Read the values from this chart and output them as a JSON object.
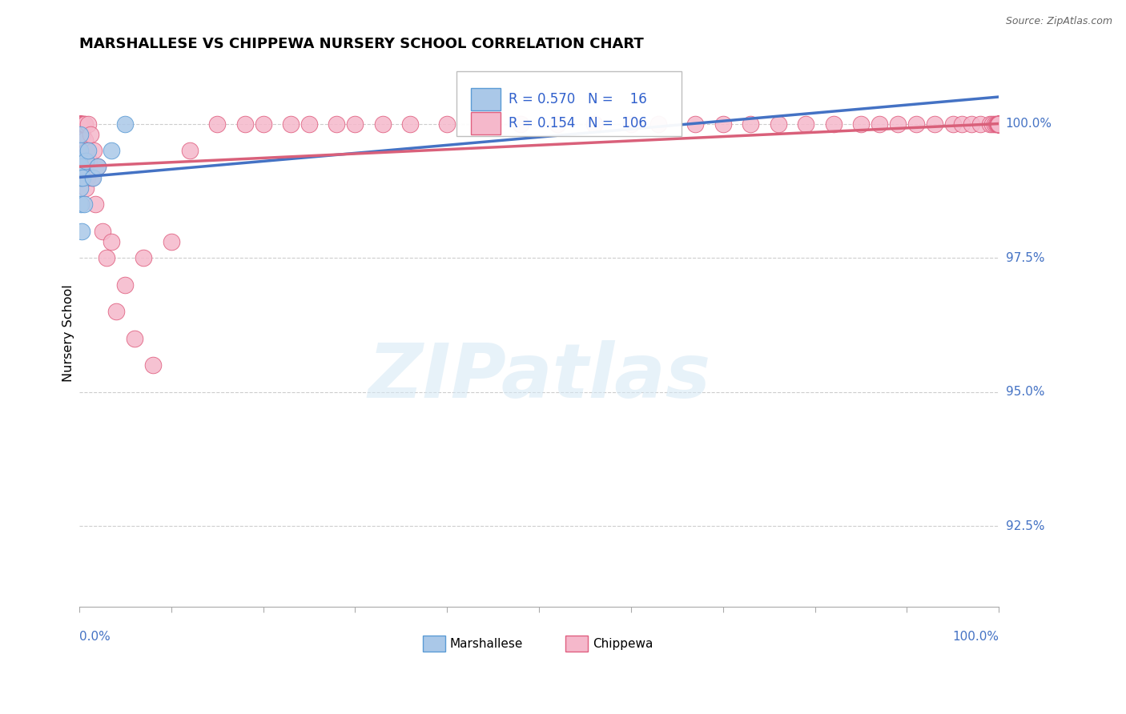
{
  "title": "MARSHALLESE VS CHIPPEWA NURSERY SCHOOL CORRELATION CHART",
  "source": "Source: ZipAtlas.com",
  "ylabel": "Nursery School",
  "yticks": [
    92.5,
    95.0,
    97.5,
    100.0
  ],
  "xlim": [
    0.0,
    100.0
  ],
  "ylim": [
    91.0,
    101.2
  ],
  "marshallese_R": 0.57,
  "marshallese_N": 16,
  "chippewa_R": 0.154,
  "chippewa_N": 106,
  "marshallese_color": "#aac8e8",
  "marshallese_edge_color": "#5b9bd5",
  "chippewa_color": "#f5b8cb",
  "chippewa_edge_color": "#e06080",
  "marshallese_line_color": "#4472c4",
  "chippewa_line_color": "#d9607a",
  "background_color": "#ffffff",
  "watermark_text": "ZIPatlas",
  "blue_line_x0": 0.0,
  "blue_line_y0": 99.0,
  "blue_line_x1": 100.0,
  "blue_line_y1": 100.5,
  "pink_line_x0": 0.0,
  "pink_line_y0": 99.2,
  "pink_line_x1": 100.0,
  "pink_line_y1": 100.0,
  "marshallese_x": [
    0.05,
    0.07,
    0.09,
    0.12,
    0.15,
    0.18,
    0.22,
    0.28,
    0.35,
    0.5,
    0.7,
    1.0,
    1.5,
    2.0,
    3.5,
    5.0
  ],
  "marshallese_y": [
    99.3,
    99.8,
    98.8,
    99.5,
    99.0,
    98.5,
    99.2,
    98.0,
    99.0,
    98.5,
    99.3,
    99.5,
    99.0,
    99.2,
    99.5,
    100.0
  ],
  "chippewa_x": [
    0.03,
    0.05,
    0.06,
    0.08,
    0.09,
    0.1,
    0.11,
    0.12,
    0.13,
    0.14,
    0.15,
    0.16,
    0.17,
    0.18,
    0.19,
    0.2,
    0.22,
    0.24,
    0.26,
    0.28,
    0.3,
    0.32,
    0.35,
    0.38,
    0.4,
    0.43,
    0.46,
    0.5,
    0.55,
    0.6,
    0.65,
    0.7,
    0.8,
    0.9,
    1.0,
    1.1,
    1.2,
    1.4,
    1.6,
    1.8,
    2.0,
    2.5,
    3.0,
    3.5,
    4.0,
    5.0,
    6.0,
    7.0,
    8.0,
    10.0,
    12.0,
    15.0,
    18.0,
    20.0,
    23.0,
    25.0,
    28.0,
    30.0,
    33.0,
    36.0,
    40.0,
    44.0,
    48.0,
    52.0,
    56.0,
    60.0,
    63.0,
    67.0,
    70.0,
    73.0,
    76.0,
    79.0,
    82.0,
    85.0,
    87.0,
    89.0,
    91.0,
    93.0,
    95.0,
    96.0,
    97.0,
    98.0,
    99.0,
    99.3,
    99.5,
    99.7,
    99.8,
    99.9,
    99.92,
    99.95,
    99.97,
    99.98,
    99.99,
    100.0,
    100.0,
    100.0,
    100.0,
    100.0,
    100.0,
    100.0,
    100.0,
    100.0,
    100.0,
    100.0,
    100.0,
    100.0
  ],
  "chippewa_y": [
    100.0,
    100.0,
    100.0,
    100.0,
    99.8,
    100.0,
    100.0,
    99.5,
    100.0,
    100.0,
    99.7,
    100.0,
    99.3,
    100.0,
    100.0,
    99.5,
    100.0,
    99.0,
    100.0,
    99.2,
    100.0,
    99.5,
    100.0,
    99.8,
    100.0,
    99.5,
    99.0,
    100.0,
    99.2,
    99.7,
    100.0,
    98.8,
    99.5,
    99.0,
    100.0,
    99.3,
    99.8,
    99.0,
    99.5,
    98.5,
    99.2,
    98.0,
    97.5,
    97.8,
    96.5,
    97.0,
    96.0,
    97.5,
    95.5,
    97.8,
    99.5,
    100.0,
    100.0,
    100.0,
    100.0,
    100.0,
    100.0,
    100.0,
    100.0,
    100.0,
    100.0,
    100.0,
    100.0,
    100.0,
    100.0,
    100.0,
    100.0,
    100.0,
    100.0,
    100.0,
    100.0,
    100.0,
    100.0,
    100.0,
    100.0,
    100.0,
    100.0,
    100.0,
    100.0,
    100.0,
    100.0,
    100.0,
    100.0,
    100.0,
    100.0,
    100.0,
    100.0,
    100.0,
    100.0,
    100.0,
    100.0,
    100.0,
    100.0,
    100.0,
    100.0,
    100.0,
    100.0,
    100.0,
    100.0,
    100.0,
    100.0,
    100.0,
    100.0,
    100.0,
    100.0,
    100.0
  ]
}
